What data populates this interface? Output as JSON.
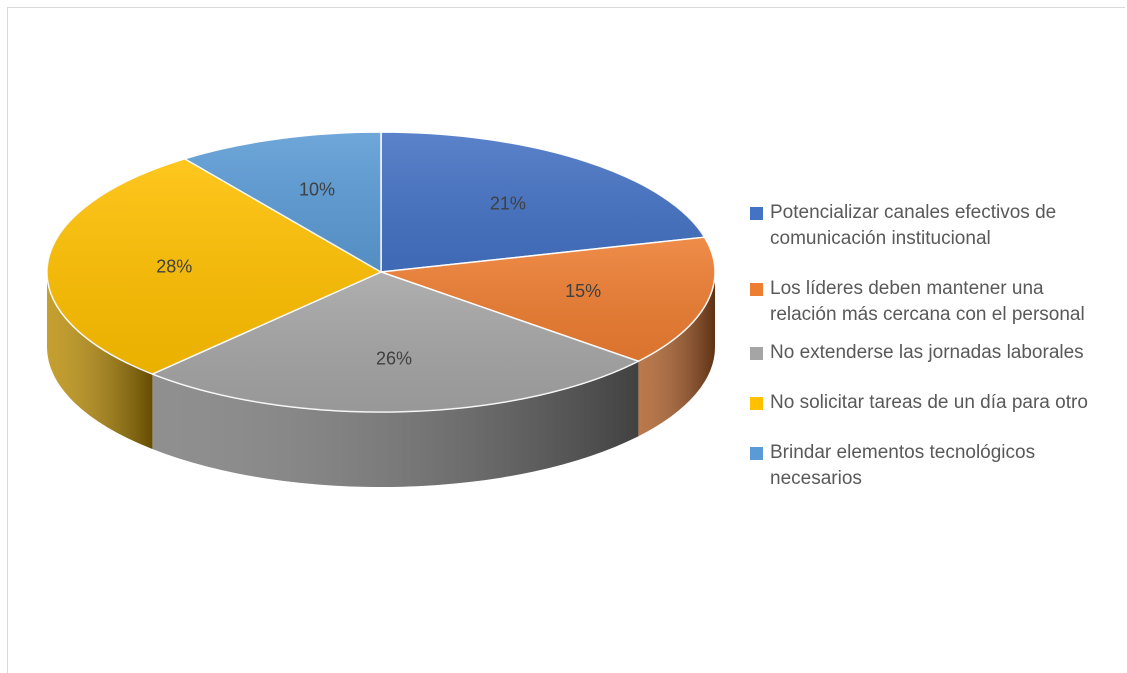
{
  "chart_data": {
    "type": "pie",
    "title": "",
    "three_d": true,
    "legend_position": "right",
    "slices": [
      {
        "label": "Potencializar canales efectivos de comunicación institucional",
        "value": 21,
        "display": "21%",
        "color": "#4472C4"
      },
      {
        "label": "Los líderes deben mantener una relación más cercana con el personal",
        "value": 15,
        "display": "15%",
        "color": "#ED7D31"
      },
      {
        "label": "No extenderse las jornadas laborales",
        "value": 26,
        "display": "26%",
        "color": "#A5A5A5"
      },
      {
        "label": "No solicitar tareas de un día para otro",
        "value": 28,
        "display": "28%",
        "color": "#FFC000"
      },
      {
        "label": "Brindar elementos tecnológicos necesarios",
        "value": 10,
        "display": "10%",
        "color": "#5B9BD5"
      }
    ]
  }
}
